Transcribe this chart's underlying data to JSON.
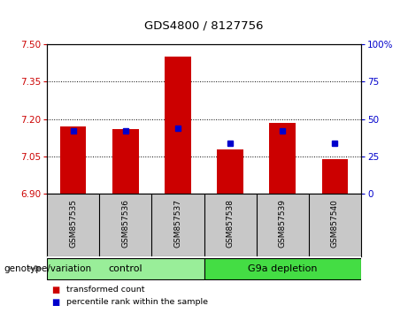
{
  "title": "GDS4800 / 8127756",
  "samples": [
    "GSM857535",
    "GSM857536",
    "GSM857537",
    "GSM857538",
    "GSM857539",
    "GSM857540"
  ],
  "transformed_counts": [
    7.17,
    7.16,
    7.45,
    7.08,
    7.185,
    7.04
  ],
  "percentile_ranks": [
    42,
    42,
    44,
    34,
    42,
    34
  ],
  "y_min": 6.9,
  "y_max": 7.5,
  "y_ticks": [
    6.9,
    7.05,
    7.2,
    7.35,
    7.5
  ],
  "right_y_ticks": [
    0,
    25,
    50,
    75,
    100
  ],
  "bar_color": "#cc0000",
  "dot_color": "#0000cc",
  "groups": [
    {
      "label": "control",
      "start": 0,
      "end": 3,
      "color": "#99ee99"
    },
    {
      "label": "G9a depletion",
      "start": 3,
      "end": 6,
      "color": "#44dd44"
    }
  ],
  "group_label_prefix": "genotype/variation",
  "legend_items": [
    {
      "label": "transformed count",
      "color": "#cc0000"
    },
    {
      "label": "percentile rank within the sample",
      "color": "#0000cc"
    }
  ],
  "background_color": "#ffffff",
  "plot_bg_color": "#ffffff",
  "sample_area_color": "#c8c8c8",
  "grid_color": "#000000"
}
